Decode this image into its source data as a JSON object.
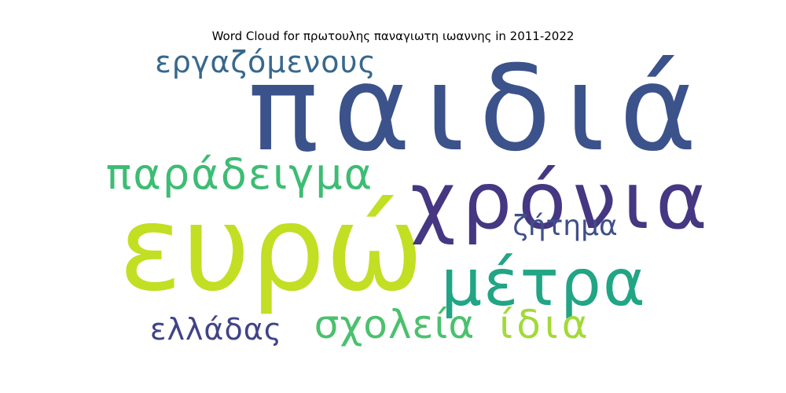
{
  "chart_data": {
    "type": "wordcloud",
    "title": "Word Cloud for πρωτουλης παναγιωτη ιωαννης in 2011-2022",
    "words": [
      {
        "text": "παιδιά",
        "weight": 1.0,
        "color": "#3b528b"
      },
      {
        "text": "ευρώ",
        "weight": 0.92,
        "color": "#c2df23"
      },
      {
        "text": "χρόνια",
        "weight": 0.65,
        "color": "#453781"
      },
      {
        "text": "μέτρα",
        "weight": 0.55,
        "color": "#21a585"
      },
      {
        "text": "παράδειγμα",
        "weight": 0.38,
        "color": "#3dbc74"
      },
      {
        "text": "σχολεία",
        "weight": 0.36,
        "color": "#4ac16d"
      },
      {
        "text": "ίδια",
        "weight": 0.36,
        "color": "#a2da37"
      },
      {
        "text": "εργαζόμενους",
        "weight": 0.28,
        "color": "#38688d"
      },
      {
        "text": "ελλάδας",
        "weight": 0.27,
        "color": "#404387"
      },
      {
        "text": "ζήτημα",
        "weight": 0.24,
        "color": "#3f4f8a"
      }
    ]
  }
}
